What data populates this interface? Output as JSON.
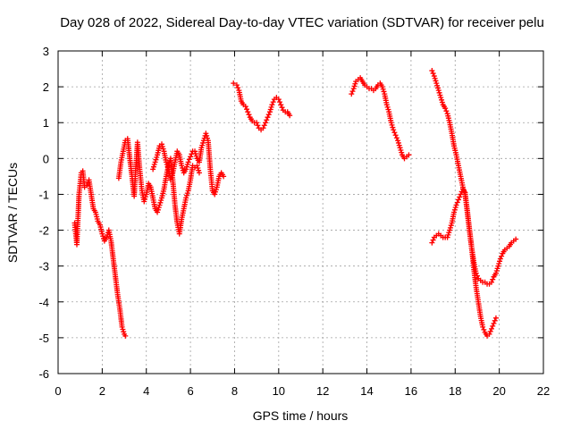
{
  "chart_data": {
    "type": "scatter",
    "title": "Day 028 of 2022, Sidereal Day-to-day VTEC variation (SDTVAR) for receiver pelu",
    "xlabel": "GPS time / hours",
    "ylabel": "SDTVAR / TECUs",
    "xlim": [
      0,
      22
    ],
    "ylim": [
      -6,
      3
    ],
    "xticks": [
      0,
      2,
      4,
      6,
      8,
      10,
      12,
      14,
      16,
      18,
      20,
      22
    ],
    "yticks": [
      -6,
      -5,
      -4,
      -3,
      -2,
      -1,
      0,
      1,
      2,
      3
    ],
    "grid": true,
    "marker": "plus",
    "color": "#ff0000",
    "series": [
      {
        "name": "SDTVAR",
        "segments": [
          [
            [
              0.75,
              -1.8
            ],
            [
              0.85,
              -2.4
            ],
            [
              0.95,
              -1.0
            ],
            [
              1.05,
              -0.4
            ],
            [
              1.12,
              -0.35
            ],
            [
              1.2,
              -0.8
            ],
            [
              1.3,
              -0.75
            ],
            [
              1.4,
              -0.6
            ],
            [
              1.5,
              -1.0
            ],
            [
              1.6,
              -1.4
            ],
            [
              1.7,
              -1.5
            ],
            [
              1.8,
              -1.75
            ],
            [
              1.9,
              -1.85
            ],
            [
              2.0,
              -2.1
            ],
            [
              2.1,
              -2.3
            ],
            [
              2.2,
              -2.2
            ],
            [
              2.3,
              -2.0
            ],
            [
              2.4,
              -2.3
            ],
            [
              2.5,
              -2.8
            ],
            [
              2.6,
              -3.3
            ],
            [
              2.7,
              -3.8
            ],
            [
              2.8,
              -4.2
            ],
            [
              2.9,
              -4.7
            ],
            [
              3.0,
              -4.9
            ],
            [
              3.05,
              -4.95
            ]
          ],
          [
            [
              2.75,
              -0.55
            ],
            [
              2.85,
              -0.1
            ],
            [
              2.95,
              0.2
            ],
            [
              3.05,
              0.5
            ],
            [
              3.15,
              0.55
            ],
            [
              3.25,
              0.0
            ],
            [
              3.35,
              -0.5
            ],
            [
              3.45,
              -1.05
            ],
            [
              3.5,
              -0.5
            ],
            [
              3.6,
              0.45
            ],
            [
              3.7,
              -0.3
            ],
            [
              3.8,
              -0.9
            ],
            [
              3.9,
              -1.2
            ],
            [
              4.0,
              -1.0
            ],
            [
              4.1,
              -0.7
            ],
            [
              4.2,
              -0.8
            ],
            [
              4.3,
              -1.1
            ],
            [
              4.4,
              -1.4
            ],
            [
              4.5,
              -1.5
            ],
            [
              4.6,
              -1.3
            ],
            [
              4.7,
              -1.1
            ],
            [
              4.8,
              -0.85
            ],
            [
              4.9,
              -0.5
            ],
            [
              5.0,
              -0.2
            ],
            [
              5.1,
              0.0
            ],
            [
              5.2,
              -0.6
            ],
            [
              5.3,
              -1.3
            ],
            [
              5.4,
              -1.8
            ],
            [
              5.5,
              -2.1
            ],
            [
              5.6,
              -1.7
            ],
            [
              5.7,
              -1.4
            ],
            [
              5.8,
              -1.1
            ],
            [
              5.9,
              -0.9
            ],
            [
              6.0,
              -0.6
            ],
            [
              6.1,
              -0.2
            ],
            [
              6.2,
              -0.25
            ],
            [
              6.3,
              -0.2
            ],
            [
              6.4,
              -0.4
            ]
          ],
          [
            [
              4.3,
              -0.3
            ],
            [
              4.4,
              -0.1
            ],
            [
              4.5,
              0.1
            ],
            [
              4.6,
              0.35
            ],
            [
              4.7,
              0.4
            ],
            [
              4.8,
              0.2
            ],
            [
              4.9,
              -0.1
            ],
            [
              5.0,
              -0.3
            ],
            [
              5.1,
              -0.6
            ],
            [
              5.2,
              -0.4
            ],
            [
              5.3,
              -0.1
            ],
            [
              5.4,
              0.2
            ],
            [
              5.5,
              0.1
            ],
            [
              5.6,
              -0.2
            ],
            [
              5.7,
              -0.4
            ],
            [
              5.8,
              -0.3
            ],
            [
              5.9,
              -0.1
            ],
            [
              6.0,
              0.05
            ],
            [
              6.1,
              0.2
            ],
            [
              6.2,
              0.2
            ],
            [
              6.3,
              0.0
            ],
            [
              6.4,
              -0.1
            ],
            [
              6.5,
              0.3
            ],
            [
              6.6,
              0.5
            ],
            [
              6.7,
              0.7
            ],
            [
              6.8,
              0.5
            ],
            [
              6.9,
              -0.3
            ],
            [
              7.0,
              -0.9
            ],
            [
              7.1,
              -1.0
            ],
            [
              7.2,
              -0.8
            ],
            [
              7.3,
              -0.5
            ],
            [
              7.4,
              -0.4
            ],
            [
              7.5,
              -0.5
            ]
          ],
          [
            [
              7.95,
              2.1
            ],
            [
              8.1,
              2.05
            ],
            [
              8.2,
              1.9
            ],
            [
              8.3,
              1.6
            ],
            [
              8.4,
              1.5
            ],
            [
              8.5,
              1.45
            ],
            [
              8.6,
              1.3
            ],
            [
              8.7,
              1.15
            ],
            [
              8.8,
              1.05
            ],
            [
              8.9,
              1.0
            ],
            [
              9.0,
              1.0
            ],
            [
              9.1,
              0.85
            ],
            [
              9.2,
              0.8
            ],
            [
              9.3,
              0.85
            ],
            [
              9.4,
              1.0
            ],
            [
              9.5,
              1.15
            ],
            [
              9.6,
              1.3
            ],
            [
              9.7,
              1.5
            ],
            [
              9.8,
              1.65
            ],
            [
              9.9,
              1.7
            ],
            [
              10.0,
              1.65
            ],
            [
              10.1,
              1.5
            ],
            [
              10.2,
              1.35
            ],
            [
              10.3,
              1.3
            ],
            [
              10.4,
              1.3
            ],
            [
              10.5,
              1.2
            ]
          ],
          [
            [
              13.3,
              1.8
            ],
            [
              13.4,
              1.95
            ],
            [
              13.5,
              2.15
            ],
            [
              13.6,
              2.2
            ],
            [
              13.7,
              2.25
            ],
            [
              13.8,
              2.15
            ],
            [
              13.9,
              2.05
            ],
            [
              14.0,
              2.0
            ],
            [
              14.1,
              1.95
            ],
            [
              14.2,
              1.95
            ],
            [
              14.3,
              1.9
            ],
            [
              14.4,
              1.95
            ],
            [
              14.5,
              2.05
            ],
            [
              14.6,
              2.1
            ],
            [
              14.7,
              2.0
            ],
            [
              14.8,
              1.8
            ],
            [
              14.9,
              1.5
            ],
            [
              15.0,
              1.3
            ],
            [
              15.1,
              1.0
            ],
            [
              15.2,
              0.8
            ],
            [
              15.3,
              0.65
            ],
            [
              15.4,
              0.5
            ],
            [
              15.5,
              0.3
            ],
            [
              15.6,
              0.1
            ],
            [
              15.7,
              0.0
            ],
            [
              15.8,
              0.05
            ],
            [
              15.9,
              0.1
            ]
          ],
          [
            [
              16.95,
              2.45
            ],
            [
              17.05,
              2.3
            ],
            [
              17.15,
              2.1
            ],
            [
              17.25,
              1.9
            ],
            [
              17.35,
              1.7
            ],
            [
              17.45,
              1.5
            ],
            [
              17.55,
              1.4
            ],
            [
              17.65,
              1.25
            ],
            [
              17.75,
              1.0
            ],
            [
              17.85,
              0.7
            ],
            [
              17.95,
              0.35
            ],
            [
              18.05,
              0.1
            ],
            [
              18.15,
              -0.2
            ],
            [
              18.25,
              -0.5
            ],
            [
              18.35,
              -0.8
            ],
            [
              18.45,
              -1.0
            ],
            [
              18.55,
              -1.45
            ],
            [
              18.65,
              -2.0
            ],
            [
              18.75,
              -2.5
            ],
            [
              18.85,
              -3.1
            ],
            [
              18.95,
              -3.6
            ],
            [
              19.05,
              -4.0
            ],
            [
              19.15,
              -4.4
            ],
            [
              19.25,
              -4.7
            ],
            [
              19.35,
              -4.85
            ],
            [
              19.45,
              -4.95
            ],
            [
              19.55,
              -4.9
            ],
            [
              19.65,
              -4.75
            ],
            [
              19.75,
              -4.6
            ],
            [
              19.85,
              -4.45
            ]
          ],
          [
            [
              16.95,
              -2.35
            ],
            [
              17.05,
              -2.2
            ],
            [
              17.15,
              -2.15
            ],
            [
              17.25,
              -2.1
            ],
            [
              17.35,
              -2.15
            ],
            [
              17.45,
              -2.2
            ],
            [
              17.55,
              -2.2
            ],
            [
              17.65,
              -2.2
            ],
            [
              17.75,
              -2.0
            ],
            [
              17.85,
              -1.8
            ],
            [
              17.95,
              -1.5
            ],
            [
              18.05,
              -1.3
            ],
            [
              18.15,
              -1.15
            ],
            [
              18.25,
              -1.0
            ],
            [
              18.35,
              -0.85
            ],
            [
              18.45,
              -0.95
            ],
            [
              18.55,
              -1.5
            ],
            [
              18.65,
              -2.0
            ],
            [
              18.75,
              -2.5
            ],
            [
              18.85,
              -2.9
            ],
            [
              18.95,
              -3.2
            ],
            [
              19.05,
              -3.35
            ],
            [
              19.15,
              -3.4
            ],
            [
              19.25,
              -3.45
            ],
            [
              19.35,
              -3.45
            ],
            [
              19.45,
              -3.5
            ],
            [
              19.55,
              -3.5
            ],
            [
              19.65,
              -3.45
            ],
            [
              19.75,
              -3.3
            ],
            [
              19.85,
              -3.2
            ],
            [
              19.95,
              -3.0
            ],
            [
              20.05,
              -2.8
            ],
            [
              20.15,
              -2.65
            ],
            [
              20.25,
              -2.55
            ],
            [
              20.35,
              -2.5
            ],
            [
              20.45,
              -2.45
            ],
            [
              20.55,
              -2.35
            ],
            [
              20.65,
              -2.3
            ],
            [
              20.75,
              -2.25
            ]
          ]
        ]
      }
    ]
  }
}
